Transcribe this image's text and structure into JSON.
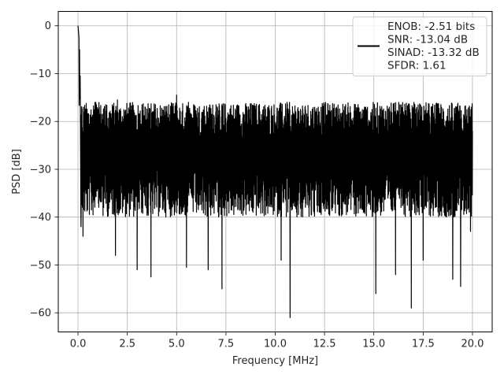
{
  "chart_data": {
    "type": "line",
    "title": "",
    "xlabel": "Frequency [MHz]",
    "ylabel": "PSD [dB]",
    "xlim": [
      -1.0,
      21.0
    ],
    "ylim": [
      -64.0,
      3.0
    ],
    "xticks": [
      0.0,
      2.5,
      5.0,
      7.5,
      10.0,
      12.5,
      15.0,
      17.5,
      20.0
    ],
    "xtick_labels": [
      "0.0",
      "2.5",
      "5.0",
      "7.5",
      "10.0",
      "12.5",
      "15.0",
      "17.5",
      "20.0"
    ],
    "yticks": [
      0,
      -10,
      -20,
      -30,
      -40,
      -50,
      -60
    ],
    "ytick_labels": [
      "0",
      "−10",
      "−20",
      "−30",
      "−40",
      "−50",
      "−60"
    ],
    "grid": true,
    "legend_position": "top-right",
    "series": [
      {
        "name": "ENOB: -2.51 bits\nSNR: -13.04 dB\nSINAD: -13.32 dB\nSFDR: 1.61",
        "color": "#000000",
        "x_range": [
          0.0,
          20.0
        ],
        "noise_floor_db": -28.0,
        "upper_envelope_db": -17.0,
        "lower_envelope_db": -40.0,
        "peak": {
          "x": 0.0,
          "y": 0.0
        },
        "low_spikes": [
          {
            "x": 0.15,
            "y": -42.0
          },
          {
            "x": 0.25,
            "y": -44.0
          },
          {
            "x": 1.9,
            "y": -48.0
          },
          {
            "x": 3.0,
            "y": -51.0
          },
          {
            "x": 3.7,
            "y": -52.5
          },
          {
            "x": 5.5,
            "y": -50.5
          },
          {
            "x": 6.6,
            "y": -51.0
          },
          {
            "x": 7.3,
            "y": -55.0
          },
          {
            "x": 10.3,
            "y": -49.0
          },
          {
            "x": 10.75,
            "y": -61.0
          },
          {
            "x": 15.1,
            "y": -56.0
          },
          {
            "x": 16.1,
            "y": -52.0
          },
          {
            "x": 16.9,
            "y": -59.0
          },
          {
            "x": 17.5,
            "y": -49.0
          },
          {
            "x": 19.0,
            "y": -53.0
          },
          {
            "x": 19.4,
            "y": -54.5
          },
          {
            "x": 19.9,
            "y": -43.0
          }
        ],
        "high_spikes": [
          {
            "x": 0.05,
            "y": -2.5
          },
          {
            "x": 0.08,
            "y": -5.0
          },
          {
            "x": 0.11,
            "y": -10.5
          },
          {
            "x": 0.9,
            "y": -16.0
          },
          {
            "x": 1.4,
            "y": -16.5
          },
          {
            "x": 2.0,
            "y": -15.5
          },
          {
            "x": 5.0,
            "y": -14.5
          },
          {
            "x": 5.6,
            "y": -16.0
          },
          {
            "x": 7.0,
            "y": -16.5
          },
          {
            "x": 10.6,
            "y": -16.0
          },
          {
            "x": 16.8,
            "y": -16.5
          },
          {
            "x": 19.2,
            "y": -17.0
          }
        ]
      }
    ]
  }
}
